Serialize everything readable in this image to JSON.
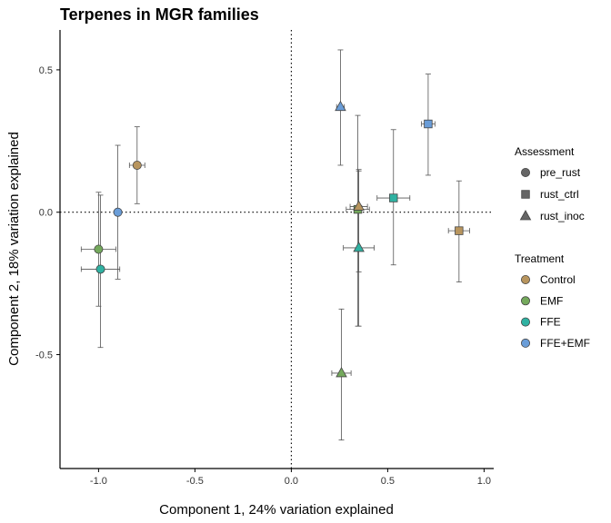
{
  "chart_data": {
    "type": "scatter",
    "title": "Terpenes in MGR families",
    "xlabel": "Component 1, 24% variation explained",
    "ylabel": "Component 2, 18% variation explained",
    "xlim": [
      -1.2,
      1.05
    ],
    "ylim": [
      -0.9,
      0.64
    ],
    "xticks": [
      -1.0,
      -0.5,
      0.0,
      0.5,
      1.0
    ],
    "xtick_labels": [
      "-1.0",
      "-0.5",
      "0.0",
      "0.5",
      "1.0"
    ],
    "yticks": [
      -0.5,
      0.0,
      0.5
    ],
    "ytick_labels": [
      "-0.5",
      "0.0",
      "0.5"
    ],
    "reference_lines": {
      "x": 0,
      "y": 0,
      "style": "dotted"
    },
    "grid": false,
    "legend_position": "right",
    "legend": {
      "assessment": {
        "title": "Assessment",
        "items": [
          {
            "label": "pre_rust",
            "shape": "circle"
          },
          {
            "label": "rust_ctrl",
            "shape": "square"
          },
          {
            "label": "rust_inoc",
            "shape": "triangle"
          }
        ]
      },
      "treatment": {
        "title": "Treatment",
        "items": [
          {
            "label": "Control",
            "color": "#B8955E"
          },
          {
            "label": "EMF",
            "color": "#74A95C"
          },
          {
            "label": "FFE",
            "color": "#2FB2A2"
          },
          {
            "label": "FFE+EMF",
            "color": "#6A9DD8"
          }
        ]
      }
    },
    "points": [
      {
        "assessment": "pre_rust",
        "treatment": "Control",
        "x": -0.8,
        "y": 0.165,
        "xerr": 0.04,
        "yerr_low": 0.03,
        "yerr_high": 0.3
      },
      {
        "assessment": "pre_rust",
        "treatment": "EMF",
        "x": -1.0,
        "y": -0.13,
        "xerr": 0.09,
        "yerr_low": -0.33,
        "yerr_high": 0.07
      },
      {
        "assessment": "pre_rust",
        "treatment": "FFE",
        "x": -0.99,
        "y": -0.2,
        "xerr": 0.1,
        "yerr_low": -0.475,
        "yerr_high": 0.06
      },
      {
        "assessment": "pre_rust",
        "treatment": "FFE+EMF",
        "x": -0.9,
        "y": 0.0,
        "xerr": 0.01,
        "yerr_low": -0.235,
        "yerr_high": 0.235
      },
      {
        "assessment": "rust_ctrl",
        "treatment": "Control",
        "x": 0.87,
        "y": -0.065,
        "xerr": 0.055,
        "yerr_low": -0.245,
        "yerr_high": 0.11
      },
      {
        "assessment": "rust_ctrl",
        "treatment": "EMF",
        "x": 0.345,
        "y": 0.01,
        "xerr": 0.06,
        "yerr_low": -0.4,
        "yerr_high": 0.34
      },
      {
        "assessment": "rust_ctrl",
        "treatment": "FFE",
        "x": 0.53,
        "y": 0.05,
        "xerr": 0.085,
        "yerr_low": -0.185,
        "yerr_high": 0.29
      },
      {
        "assessment": "rust_ctrl",
        "treatment": "FFE+EMF",
        "x": 0.71,
        "y": 0.31,
        "xerr": 0.035,
        "yerr_low": 0.13,
        "yerr_high": 0.485
      },
      {
        "assessment": "rust_inoc",
        "treatment": "Control",
        "x": 0.35,
        "y": 0.02,
        "xerr": 0.045,
        "yerr_low": -0.21,
        "yerr_high": 0.15
      },
      {
        "assessment": "rust_inoc",
        "treatment": "EMF",
        "x": 0.26,
        "y": -0.565,
        "xerr": 0.05,
        "yerr_low": -0.8,
        "yerr_high": -0.34
      },
      {
        "assessment": "rust_inoc",
        "treatment": "FFE",
        "x": 0.35,
        "y": -0.125,
        "xerr": 0.08,
        "yerr_low": -0.4,
        "yerr_high": 0.145
      },
      {
        "assessment": "rust_inoc",
        "treatment": "FFE+EMF",
        "x": 0.255,
        "y": 0.37,
        "xerr": 0.02,
        "yerr_low": 0.165,
        "yerr_high": 0.57
      }
    ]
  }
}
